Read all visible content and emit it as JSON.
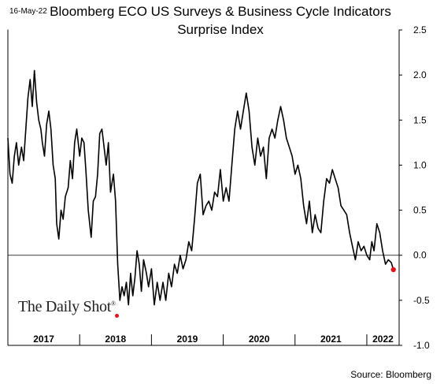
{
  "header": {
    "date": "16-May-22",
    "title_line1": "Bloomberg ECO US Surveys & Business Cycle Indicators",
    "title_line2": "Surprise Index"
  },
  "source": "Source: Bloomberg",
  "watermark": {
    "text": "The Daily Shot",
    "mark": "®",
    "dot_color": "#e0151b"
  },
  "chart_data": {
    "type": "line",
    "title": "Bloomberg ECO US Surveys & Business Cycle Indicators Surprise Index",
    "xlabel": "",
    "ylabel": "",
    "ylim": [
      -1.0,
      2.5
    ],
    "yticks": [
      "2.5",
      "2.0",
      "1.5",
      "1.0",
      "0.5",
      "0.0",
      "-0.5",
      "-1.0"
    ],
    "xlim": [
      2017.0,
      2022.45
    ],
    "xticks": [
      "2017",
      "2018",
      "2019",
      "2020",
      "2021",
      "2022"
    ],
    "year_boundaries": [
      2018,
      2019,
      2020,
      2021,
      2022
    ],
    "zero_line": true,
    "grid": false,
    "line_color": "#000000",
    "last_point_color": "#e0151b",
    "series": [
      {
        "values": [
          [
            2017.0,
            1.3
          ],
          [
            2017.03,
            0.9
          ],
          [
            2017.06,
            0.8
          ],
          [
            2017.09,
            1.1
          ],
          [
            2017.12,
            1.25
          ],
          [
            2017.15,
            1.0
          ],
          [
            2017.19,
            1.2
          ],
          [
            2017.22,
            1.05
          ],
          [
            2017.25,
            1.4
          ],
          [
            2017.28,
            1.75
          ],
          [
            2017.31,
            1.95
          ],
          [
            2017.34,
            1.65
          ],
          [
            2017.37,
            2.05
          ],
          [
            2017.4,
            1.7
          ],
          [
            2017.43,
            1.5
          ],
          [
            2017.46,
            1.4
          ],
          [
            2017.48,
            1.25
          ],
          [
            2017.51,
            1.1
          ],
          [
            2017.54,
            1.45
          ],
          [
            2017.57,
            1.6
          ],
          [
            2017.6,
            1.4
          ],
          [
            2017.63,
            1.0
          ],
          [
            2017.66,
            0.85
          ],
          [
            2017.68,
            0.35
          ],
          [
            2017.71,
            0.18
          ],
          [
            2017.74,
            0.5
          ],
          [
            2017.77,
            0.4
          ],
          [
            2017.8,
            0.65
          ],
          [
            2017.84,
            0.75
          ],
          [
            2017.87,
            1.05
          ],
          [
            2017.9,
            0.85
          ],
          [
            2017.93,
            1.25
          ],
          [
            2017.96,
            1.4
          ],
          [
            2018.0,
            1.1
          ],
          [
            2018.03,
            1.3
          ],
          [
            2018.06,
            1.25
          ],
          [
            2018.09,
            0.9
          ],
          [
            2018.12,
            0.5
          ],
          [
            2018.16,
            0.2
          ],
          [
            2018.19,
            0.6
          ],
          [
            2018.22,
            0.65
          ],
          [
            2018.25,
            0.9
          ],
          [
            2018.28,
            1.35
          ],
          [
            2018.31,
            1.4
          ],
          [
            2018.34,
            1.2
          ],
          [
            2018.37,
            1.0
          ],
          [
            2018.4,
            1.25
          ],
          [
            2018.43,
            0.7
          ],
          [
            2018.47,
            0.9
          ],
          [
            2018.5,
            0.6
          ],
          [
            2018.53,
            -0.1
          ],
          [
            2018.56,
            -0.5
          ],
          [
            2018.59,
            -0.35
          ],
          [
            2018.62,
            -0.45
          ],
          [
            2018.65,
            -0.3
          ],
          [
            2018.68,
            -0.55
          ],
          [
            2018.71,
            -0.2
          ],
          [
            2018.74,
            -0.45
          ],
          [
            2018.77,
            -0.25
          ],
          [
            2018.8,
            0.05
          ],
          [
            2018.83,
            -0.1
          ],
          [
            2018.86,
            -0.4
          ],
          [
            2018.89,
            -0.05
          ],
          [
            2018.93,
            -0.2
          ],
          [
            2018.96,
            -0.35
          ],
          [
            2019.0,
            -0.15
          ],
          [
            2019.04,
            -0.55
          ],
          [
            2019.08,
            -0.3
          ],
          [
            2019.12,
            -0.5
          ],
          [
            2019.16,
            -0.3
          ],
          [
            2019.2,
            -0.5
          ],
          [
            2019.24,
            -0.2
          ],
          [
            2019.28,
            -0.35
          ],
          [
            2019.32,
            -0.1
          ],
          [
            2019.36,
            -0.2
          ],
          [
            2019.4,
            0.0
          ],
          [
            2019.44,
            -0.15
          ],
          [
            2019.48,
            -0.05
          ],
          [
            2019.52,
            0.15
          ],
          [
            2019.56,
            0.05
          ],
          [
            2019.6,
            0.4
          ],
          [
            2019.64,
            0.8
          ],
          [
            2019.68,
            0.9
          ],
          [
            2019.72,
            0.45
          ],
          [
            2019.76,
            0.55
          ],
          [
            2019.8,
            0.6
          ],
          [
            2019.84,
            0.5
          ],
          [
            2019.88,
            0.7
          ],
          [
            2019.92,
            0.65
          ],
          [
            2019.96,
            0.95
          ],
          [
            2020.0,
            0.6
          ],
          [
            2020.04,
            0.75
          ],
          [
            2020.08,
            0.6
          ],
          [
            2020.12,
            1.0
          ],
          [
            2020.16,
            1.4
          ],
          [
            2020.2,
            1.6
          ],
          [
            2020.24,
            1.4
          ],
          [
            2020.28,
            1.6
          ],
          [
            2020.32,
            1.8
          ],
          [
            2020.36,
            1.6
          ],
          [
            2020.4,
            1.2
          ],
          [
            2020.44,
            1.0
          ],
          [
            2020.48,
            1.3
          ],
          [
            2020.52,
            1.1
          ],
          [
            2020.56,
            1.2
          ],
          [
            2020.6,
            0.85
          ],
          [
            2020.64,
            1.3
          ],
          [
            2020.68,
            1.4
          ],
          [
            2020.72,
            1.3
          ],
          [
            2020.76,
            1.5
          ],
          [
            2020.8,
            1.65
          ],
          [
            2020.84,
            1.5
          ],
          [
            2020.88,
            1.3
          ],
          [
            2020.92,
            1.2
          ],
          [
            2020.96,
            1.1
          ],
          [
            2021.0,
            0.9
          ],
          [
            2021.04,
            1.0
          ],
          [
            2021.08,
            0.85
          ],
          [
            2021.12,
            0.55
          ],
          [
            2021.16,
            0.35
          ],
          [
            2021.2,
            0.6
          ],
          [
            2021.24,
            0.25
          ],
          [
            2021.28,
            0.45
          ],
          [
            2021.32,
            0.3
          ],
          [
            2021.36,
            0.25
          ],
          [
            2021.4,
            0.6
          ],
          [
            2021.44,
            0.85
          ],
          [
            2021.48,
            0.8
          ],
          [
            2021.52,
            0.95
          ],
          [
            2021.56,
            0.85
          ],
          [
            2021.6,
            0.75
          ],
          [
            2021.64,
            0.55
          ],
          [
            2021.68,
            0.5
          ],
          [
            2021.72,
            0.45
          ],
          [
            2021.76,
            0.25
          ],
          [
            2021.8,
            0.1
          ],
          [
            2021.84,
            -0.05
          ],
          [
            2021.88,
            0.15
          ],
          [
            2021.92,
            0.05
          ],
          [
            2021.96,
            0.1
          ],
          [
            2022.0,
            0.0
          ],
          [
            2022.04,
            -0.05
          ],
          [
            2022.07,
            0.15
          ],
          [
            2022.1,
            0.05
          ],
          [
            2022.14,
            0.35
          ],
          [
            2022.18,
            0.25
          ],
          [
            2022.22,
            0.05
          ],
          [
            2022.26,
            -0.1
          ],
          [
            2022.3,
            -0.05
          ],
          [
            2022.34,
            -0.08
          ],
          [
            2022.37,
            -0.16
          ]
        ]
      }
    ]
  }
}
